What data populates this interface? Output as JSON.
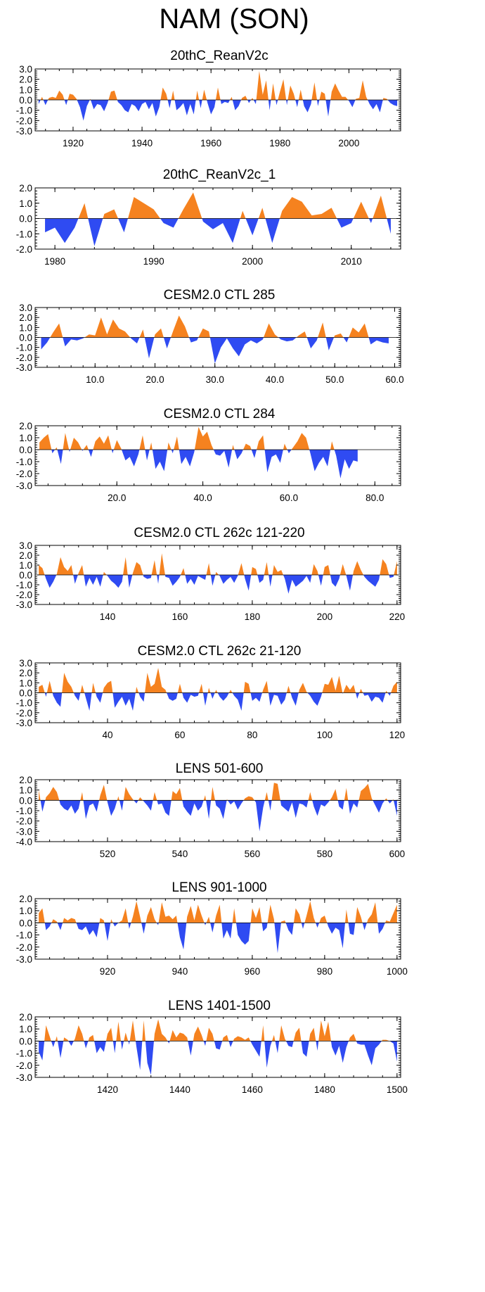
{
  "figure_title": "NAM (SON)",
  "colors": {
    "positive": "#f5821f",
    "negative": "#2f4bf2",
    "axis": "#000000"
  },
  "chart_data": [
    {
      "type": "area",
      "title": "20thC_ReanV2c",
      "xlim": [
        1909,
        2015
      ],
      "ylim": [
        -3,
        3
      ],
      "x_ticks": [
        1920,
        1940,
        1960,
        1980,
        2000
      ],
      "x_tick_labels": [
        "1920",
        "1940",
        "1960",
        "1980",
        "2000"
      ],
      "y_ticks": [
        3,
        2,
        1,
        0,
        -1,
        -2,
        -3
      ],
      "y_tick_labels": [
        "3.0",
        "2.0",
        "1.0",
        "0.0",
        "-1.0",
        "-2.0",
        "-3.0"
      ],
      "x_start": 1910,
      "x_step": 1,
      "values": [
        -0.4,
        0.3,
        -0.5,
        0.2,
        0.3,
        0.2,
        0.9,
        0.5,
        -0.5,
        0.6,
        0.5,
        0.1,
        -0.7,
        -2.0,
        -0.6,
        0.1,
        -0.9,
        -0.4,
        -0.5,
        -1.1,
        -0.3,
        0.8,
        0.9,
        -0.2,
        -0.5,
        -1.0,
        -1.2,
        -0.4,
        -0.6,
        -1.1,
        -0.4,
        -0.2,
        -0.9,
        -0.3,
        -1.6,
        -0.7,
        1.2,
        0.6,
        -0.8,
        0.9,
        -1.0,
        -0.7,
        -0.3,
        -1.5,
        -0.4,
        -1.4,
        0.9,
        -0.8,
        1.0,
        -0.3,
        -1.4,
        -0.7,
        1.2,
        -0.4,
        -0.2,
        -0.3,
        0.3,
        -1.0,
        -0.6,
        0.2,
        0.4,
        -0.3,
        0.2,
        -0.4,
        2.8,
        0.5,
        1.9,
        -1.0,
        1.6,
        -0.5,
        0.8,
        2.0,
        -0.5,
        1.4,
        0.6,
        -0.7,
        1.0,
        -0.6,
        -1.2,
        -0.4,
        1.7,
        -0.6,
        0.8,
        0.6,
        -1.6,
        0.8,
        1.6,
        0.9,
        0.3,
        0.3,
        -0.1,
        -0.7,
        0.1,
        0.2,
        1.9,
        0.3,
        -0.4,
        -0.9,
        -0.4,
        -1.2,
        0.2,
        0.1,
        -0.3,
        -0.5,
        -0.6
      ]
    },
    {
      "type": "area",
      "title": "20thC_ReanV2c_1",
      "xlim": [
        1978,
        2015
      ],
      "ylim": [
        -2,
        2
      ],
      "x_ticks": [
        1980,
        1990,
        2000,
        2010
      ],
      "x_tick_labels": [
        "1980",
        "1990",
        "2000",
        "2010"
      ],
      "y_ticks": [
        2,
        1,
        0,
        -1,
        -2
      ],
      "y_tick_labels": [
        "2.0",
        "1.0",
        "0.0",
        "-1.0",
        "-2.0"
      ],
      "x_start": 1979,
      "x_step": 1,
      "values": [
        -0.9,
        -0.6,
        -1.6,
        -0.6,
        1.0,
        -1.8,
        0.3,
        0.6,
        -0.9,
        1.4,
        1.0,
        0.6,
        -0.3,
        -0.6,
        0.6,
        1.7,
        -0.2,
        -0.7,
        -0.3,
        -1.6,
        0.5,
        -1.1,
        0.7,
        -1.6,
        0.5,
        1.4,
        1.1,
        0.2,
        0.3,
        0.7,
        -0.6,
        -0.3,
        1.1,
        -0.3,
        1.5,
        -1.0
      ]
    },
    {
      "type": "area",
      "title": "CESM2.0 CTL 285",
      "xlim": [
        0,
        61
      ],
      "ylim": [
        -3,
        3
      ],
      "x_ticks": [
        10,
        20,
        30,
        40,
        50,
        60
      ],
      "x_tick_labels": [
        "10.0",
        "20.0",
        "30.0",
        "40.0",
        "50.0",
        "60.0"
      ],
      "y_ticks": [
        3,
        2,
        1,
        0,
        -1,
        -2,
        -3
      ],
      "y_tick_labels": [
        "3.0",
        "2.0",
        "1.0",
        "0.0",
        "-1.0",
        "-2.0",
        "-3.0"
      ],
      "x_start": 1,
      "x_step": 1,
      "values": [
        -1.2,
        -0.5,
        0.5,
        1.4,
        -0.9,
        -0.2,
        -0.3,
        -0.1,
        0.3,
        0.2,
        2.0,
        0.3,
        1.8,
        0.9,
        0.6,
        -0.1,
        -0.6,
        0.8,
        -2.1,
        0.3,
        0.9,
        -1.1,
        0.6,
        2.2,
        1.1,
        -0.5,
        -0.3,
        0.9,
        0.6,
        -2.6,
        -1.0,
        -0.1,
        -1.1,
        -1.9,
        -0.7,
        -0.3,
        -0.6,
        -0.2,
        1.4,
        0.3,
        -0.2,
        -0.4,
        -0.3,
        0.2,
        0.6,
        -1.1,
        -0.3,
        1.5,
        -1.3,
        0.2,
        0.4,
        -0.5,
        1.0,
        0.5,
        1.4,
        -0.7,
        -0.3,
        -0.5,
        -0.6
      ]
    },
    {
      "type": "area",
      "title": "CESM2.0 CTL 284",
      "xlim": [
        1,
        86
      ],
      "ylim": [
        -3,
        2
      ],
      "x_ticks": [
        20,
        40,
        60,
        80
      ],
      "x_tick_labels": [
        "20.0",
        "40.0",
        "60.0",
        "80.0"
      ],
      "y_ticks": [
        2,
        1,
        0,
        -1,
        -2,
        -3
      ],
      "y_tick_labels": [
        "2.0",
        "1.0",
        "0.0",
        "-1.0",
        "-2.0",
        "-3.0"
      ],
      "x_start": 2,
      "x_step": 1,
      "values": [
        0.6,
        1.0,
        1.3,
        -0.3,
        0.2,
        -1.2,
        1.4,
        -0.2,
        1.0,
        0.6,
        -0.1,
        0.4,
        -0.6,
        0.7,
        1.1,
        0.5,
        1.2,
        -0.3,
        0.8,
        0.1,
        -0.9,
        -0.6,
        -1.4,
        -0.4,
        1.2,
        -0.9,
        0.6,
        -1.6,
        -1.0,
        -1.8,
        0.6,
        -0.3,
        1.1,
        -1.2,
        -0.6,
        -1.4,
        -0.2,
        1.9,
        1.1,
        1.5,
        0.4,
        -0.4,
        -0.5,
        -0.1,
        -1.5,
        0.4,
        -0.8,
        -0.3,
        0.5,
        0.3,
        -0.7,
        0.7,
        1.2,
        -1.9,
        -0.6,
        -0.4,
        -1.1,
        0.5,
        -0.3,
        0.2,
        0.7,
        1.4,
        1.0,
        -0.3,
        -1.8,
        -1.1,
        -0.6,
        -1.4,
        0.7,
        -0.5,
        -2.4,
        -0.8,
        -1.6,
        -0.9,
        -1.0
      ]
    },
    {
      "type": "area",
      "title": "CESM2.0 CTL 262c 121-220",
      "xlim": [
        120,
        221
      ],
      "ylim": [
        -3,
        3
      ],
      "x_ticks": [
        140,
        160,
        180,
        200,
        220
      ],
      "x_tick_labels": [
        "140",
        "160",
        "180",
        "200",
        "220"
      ],
      "y_ticks": [
        3,
        2,
        1,
        0,
        -1,
        -2,
        -3
      ],
      "y_tick_labels": [
        "3.0",
        "2.0",
        "1.0",
        "0.0",
        "-1.0",
        "-2.0",
        "-3.0"
      ],
      "x_start": 121,
      "x_step": 1,
      "values": [
        1.0,
        0.7,
        -0.4,
        -1.3,
        -0.7,
        0.1,
        1.8,
        0.8,
        0.4,
        1.0,
        -0.9,
        0.2,
        1.0,
        -1.2,
        -0.3,
        -1.0,
        -0.2,
        -1.2,
        0.3,
        -0.1,
        -0.6,
        -0.9,
        -1.3,
        -0.7,
        1.8,
        -1.3,
        0.2,
        1.3,
        1.0,
        -0.2,
        -0.4,
        -0.3,
        1.5,
        -0.9,
        2.2,
        -0.2,
        -0.3,
        -1.1,
        -0.7,
        -0.2,
        0.7,
        -0.9,
        -0.4,
        -1.0,
        -0.1,
        -0.3,
        -0.5,
        1.2,
        -1.1,
        0.3,
        -0.1,
        -0.9,
        -0.5,
        -0.2,
        -0.8,
        -0.1,
        1.2,
        -0.4,
        -1.6,
        0.8,
        0.6,
        -0.8,
        -0.5,
        1.3,
        -1.2,
        1.0,
        0.3,
        0.5,
        -0.4,
        -1.9,
        -0.5,
        -1.2,
        -0.9,
        -0.6,
        -0.1,
        -0.8,
        1.1,
        0.4,
        -1.1,
        0.8,
        1.0,
        -0.8,
        -1.2,
        -0.4,
        1.1,
        -0.1,
        -1.6,
        0.4,
        1.4,
        0.5,
        -0.2,
        -0.6,
        -0.9,
        -1.2,
        -0.5,
        1.6,
        1.1,
        -0.3,
        -0.2,
        1.4
      ]
    },
    {
      "type": "area",
      "title": "CESM2.0 CTL 262c 21-120",
      "xlim": [
        20,
        121
      ],
      "ylim": [
        -3,
        3
      ],
      "x_ticks": [
        40,
        60,
        80,
        100,
        120
      ],
      "x_tick_labels": [
        "40",
        "60",
        "80",
        "100",
        "120"
      ],
      "y_ticks": [
        3,
        2,
        1,
        0,
        -1,
        -2,
        -3
      ],
      "y_tick_labels": [
        "3.0",
        "2.0",
        "1.0",
        "0.0",
        "-1.0",
        "-2.0",
        "-3.0"
      ],
      "x_start": 21,
      "x_step": 1,
      "values": [
        0.6,
        0.8,
        -0.4,
        1.2,
        -0.3,
        -1.0,
        -1.4,
        2.0,
        1.1,
        0.6,
        -0.3,
        -0.8,
        0.8,
        -0.5,
        -1.8,
        1.0,
        -0.4,
        -1.0,
        0.5,
        1.0,
        1.2,
        -1.5,
        -0.9,
        -0.4,
        -1.3,
        -0.6,
        -1.8,
        0.6,
        -0.4,
        -0.9,
        2.0,
        0.6,
        0.9,
        2.5,
        0.6,
        0.3,
        -0.6,
        -0.8,
        -0.6,
        0.9,
        -0.5,
        -1.0,
        -0.2,
        -0.4,
        -0.3,
        0.9,
        -1.3,
        0.5,
        -0.6,
        0.3,
        -0.4,
        -0.8,
        -0.4,
        0.3,
        -0.3,
        -0.7,
        -1.8,
        1.1,
        0.9,
        -0.8,
        -0.5,
        -0.9,
        0.3,
        1.2,
        -1.3,
        -0.2,
        -0.3,
        -1.2,
        -0.7,
        0.7,
        -0.5,
        -1.3,
        0.3,
        1.0,
        0.1,
        -0.3,
        -0.9,
        -1.3,
        -0.4,
        0.9,
        0.8,
        1.6,
        0.2,
        1.7,
        -0.1,
        0.8,
        0.3,
        0.8,
        -0.6,
        0.4,
        -0.3,
        -0.2,
        -0.9,
        -0.4,
        -0.5,
        -1.0,
        0.2,
        -0.3,
        0.7,
        1.1
      ]
    },
    {
      "type": "area",
      "title": "LENS 501-600",
      "xlim": [
        500,
        601
      ],
      "ylim": [
        -4,
        2
      ],
      "x_ticks": [
        520,
        540,
        560,
        580,
        600
      ],
      "x_tick_labels": [
        "520",
        "540",
        "560",
        "580",
        "600"
      ],
      "y_ticks": [
        2,
        1,
        0,
        -1,
        -2,
        -3,
        -4
      ],
      "y_tick_labels": [
        "2.0",
        "1.0",
        "0.0",
        "-1.0",
        "-2.0",
        "-3.0",
        "-4.0"
      ],
      "x_start": 501,
      "x_step": 1,
      "values": [
        1.0,
        -1.1,
        0.3,
        0.7,
        1.3,
        0.8,
        -0.4,
        -0.8,
        -1.0,
        -0.5,
        -1.3,
        -0.8,
        0.8,
        -1.8,
        -0.5,
        -0.3,
        -1.1,
        0.5,
        1.5,
        -0.2,
        -1.5,
        -0.8,
        0.4,
        -1.0,
        1.3,
        0.6,
        0.1,
        -0.3,
        0.3,
        -0.1,
        -0.5,
        -1.0,
        0.8,
        -0.4,
        -0.3,
        -1.2,
        -1.5,
        0.9,
        0.6,
        1.2,
        -0.6,
        -1.1,
        -1.5,
        -0.3,
        -1.0,
        -0.6,
        0.5,
        -1.8,
        1.3,
        -0.5,
        -0.8,
        -1.8,
        0.1,
        -0.4,
        -0.1,
        -0.9,
        -0.3,
        0.2,
        0.4,
        0.3,
        -0.2,
        -3.0,
        -0.7,
        0.8,
        -1.0,
        1.7,
        1.6,
        -0.5,
        -0.8,
        -1.1,
        -0.2,
        -1.7,
        -0.3,
        -0.4,
        -0.7,
        0.8,
        -0.6,
        -1.5,
        -0.4,
        -0.6,
        -0.2,
        0.3,
        1.1,
        -0.6,
        -0.9,
        1.2,
        -1.3,
        -0.3,
        -0.7,
        0.9,
        1.2,
        1.6,
        0.2,
        -0.5,
        -1.2,
        -0.3,
        0.2,
        -0.3,
        0.1,
        -1.5
      ]
    },
    {
      "type": "area",
      "title": "LENS 901-1000",
      "xlim": [
        900,
        1001
      ],
      "ylim": [
        -3,
        2
      ],
      "x_ticks": [
        920,
        940,
        960,
        980,
        1000
      ],
      "x_tick_labels": [
        "920",
        "940",
        "960",
        "980",
        "1000"
      ],
      "y_ticks": [
        2,
        1,
        0,
        -1,
        -2,
        -3
      ],
      "y_tick_labels": [
        "2.0",
        "1.0",
        "0.0",
        "-1.0",
        "-2.0",
        "-3.0"
      ],
      "x_start": 901,
      "x_step": 1,
      "values": [
        0.8,
        1.2,
        -0.6,
        -0.3,
        0.3,
        0.1,
        -0.6,
        0.4,
        0.2,
        0.4,
        0.3,
        -0.5,
        -0.6,
        -0.3,
        -1.0,
        -0.6,
        -1.2,
        0.4,
        0.2,
        -1.5,
        0.3,
        -0.3,
        0.0,
        0.2,
        1.2,
        -0.5,
        0.5,
        1.8,
        0.5,
        -0.9,
        0.6,
        1.3,
        0.3,
        -0.2,
        1.7,
        0.5,
        0.6,
        0.3,
        0.6,
        -1.2,
        -2.2,
        0.5,
        1.4,
        0.2,
        1.5,
        0.6,
        -0.2,
        0.5,
        -0.8,
        0.6,
        1.5,
        -1.3,
        -0.6,
        -1.3,
        1.2,
        -1.0,
        -1.5,
        -1.8,
        -1.5,
        1.2,
        0.4,
        1.3,
        -0.7,
        -0.4,
        1.5,
        0.3,
        -2.5,
        0.1,
        0.2,
        -0.6,
        -1.0,
        1.2,
        0.7,
        -0.5,
        0.6,
        1.8,
        0.4,
        -0.4,
        0.4,
        0.6,
        -0.3,
        -0.9,
        -0.4,
        -0.6,
        -2.1,
        1.1,
        -0.9,
        -1.0,
        1.3,
        0.5,
        -0.6,
        0.3,
        0.7,
        1.7,
        -0.9,
        -0.5,
        0.2,
        0.1,
        0.8,
        1.5
      ]
    },
    {
      "type": "area",
      "title": "LENS 1401-1500",
      "xlim": [
        1400,
        1501
      ],
      "ylim": [
        -3,
        2
      ],
      "x_ticks": [
        1420,
        1440,
        1460,
        1480,
        1500
      ],
      "x_tick_labels": [
        "1420",
        "1440",
        "1460",
        "1480",
        "1500"
      ],
      "y_ticks": [
        2,
        1,
        0,
        -1,
        -2,
        -3
      ],
      "y_tick_labels": [
        "2.0",
        "1.0",
        "0.0",
        "-1.0",
        "-2.0",
        "-3.0"
      ],
      "x_start": 1401,
      "x_step": 1,
      "values": [
        -0.9,
        -1.6,
        1.3,
        0.4,
        -0.5,
        0.4,
        -1.4,
        0.3,
        0.1,
        -0.4,
        0.2,
        1.3,
        0.6,
        -0.6,
        0.3,
        0.5,
        -1.0,
        -0.5,
        -0.9,
        0.6,
        1.1,
        -1.0,
        1.6,
        -0.7,
        0.7,
        -0.3,
        1.7,
        -0.5,
        -2.4,
        1.7,
        -1.8,
        -2.8,
        0.6,
        1.8,
        0.6,
        0.3,
        -0.2,
        0.9,
        0.3,
        0.7,
        0.6,
        0.3,
        -1.2,
        0.6,
        1.2,
        0.5,
        -0.4,
        1.1,
        0.6,
        -0.6,
        -0.7,
        0.3,
        0.5,
        -0.5,
        0.2,
        0.4,
        0.3,
        0.1,
        0.3,
        -0.3,
        -0.8,
        -1.3,
        1.3,
        -2.2,
        -0.4,
        0.5,
        -1.0,
        1.3,
        0.2,
        -0.4,
        -0.5,
        0.7,
        1.1,
        -1.0,
        -1.3,
        0.6,
        1.1,
        -0.8,
        1.7,
        0.4,
        1.6,
        -0.5,
        -1.2,
        -0.4,
        -1.8,
        -0.5,
        0.3,
        0.6,
        -0.2,
        -0.3,
        -0.3,
        -1.2,
        -2.0,
        -0.6,
        -0.3,
        0.1,
        0.1,
        0.0,
        -0.2,
        -1.7
      ]
    }
  ]
}
